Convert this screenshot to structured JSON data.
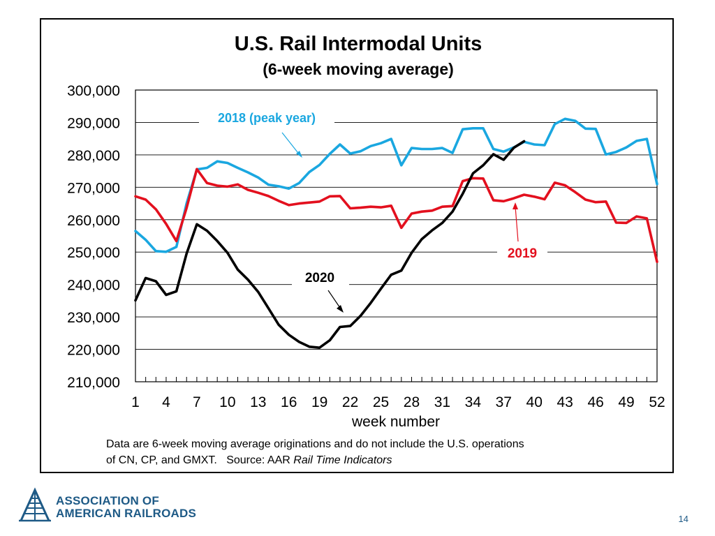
{
  "chart_data": {
    "type": "line",
    "title": "U.S. Rail Intermodal Units",
    "subtitle": "(6-week moving average)",
    "xlabel": "week number",
    "ylabel": "",
    "xlim": [
      1,
      52
    ],
    "ylim": [
      210000,
      300000
    ],
    "x_ticks": [
      "1",
      "4",
      "7",
      "10",
      "13",
      "16",
      "19",
      "22",
      "25",
      "28",
      "31",
      "34",
      "37",
      "40",
      "43",
      "46",
      "49",
      "52"
    ],
    "y_ticks": [
      "300,000",
      "290,000",
      "280,000",
      "270,000",
      "260,000",
      "250,000",
      "240,000",
      "230,000",
      "220,000",
      "210,000"
    ],
    "grid": true,
    "series": [
      {
        "name": "2018 (peak year)",
        "color": "#1aa7e0",
        "x": [
          1,
          2,
          3,
          4,
          5,
          6,
          7,
          8,
          9,
          10,
          11,
          12,
          13,
          14,
          15,
          16,
          17,
          18,
          19,
          20,
          21,
          22,
          23,
          24,
          25,
          26,
          27,
          28,
          29,
          30,
          31,
          32,
          33,
          34,
          35,
          36,
          37,
          38,
          39,
          40,
          41,
          42,
          43,
          44,
          45,
          46,
          47,
          48,
          49,
          50,
          51,
          52
        ],
        "values": [
          256500,
          253800,
          250300,
          250100,
          251600,
          265000,
          275500,
          276000,
          278000,
          277500,
          276000,
          274600,
          273000,
          270800,
          270300,
          269600,
          271300,
          274700,
          276900,
          280300,
          283200,
          280400,
          281100,
          282700,
          283600,
          284900,
          276800,
          282100,
          281800,
          281800,
          282100,
          280600,
          287900,
          288200,
          288200,
          281800,
          281000,
          282300,
          284000,
          283200,
          283000,
          289500,
          291100,
          290500,
          288100,
          288000,
          280100,
          280900,
          282300,
          284300,
          284900,
          271000
        ]
      },
      {
        "name": "2019",
        "color": "#e3101e",
        "x": [
          1,
          2,
          3,
          4,
          5,
          6,
          7,
          8,
          9,
          10,
          11,
          12,
          13,
          14,
          15,
          16,
          17,
          18,
          19,
          20,
          21,
          22,
          23,
          24,
          25,
          26,
          27,
          28,
          29,
          30,
          31,
          32,
          33,
          34,
          35,
          36,
          37,
          38,
          39,
          40,
          41,
          42,
          43,
          44,
          45,
          46,
          47,
          48,
          49,
          50,
          51,
          52
        ],
        "values": [
          267200,
          266200,
          263200,
          258700,
          253400,
          263600,
          275600,
          271300,
          270500,
          270200,
          270900,
          269200,
          268300,
          267300,
          265800,
          264500,
          265000,
          265300,
          265600,
          267200,
          267300,
          263500,
          263700,
          264000,
          263800,
          264300,
          257500,
          261900,
          262500,
          262800,
          264000,
          264200,
          271900,
          272800,
          272700,
          266000,
          265700,
          266600,
          267700,
          267100,
          266300,
          271400,
          270600,
          268500,
          266200,
          265400,
          265600,
          259100,
          259000,
          261000,
          260400,
          247000
        ]
      },
      {
        "name": "2020",
        "color": "#000000",
        "x": [
          1,
          2,
          3,
          4,
          5,
          6,
          7,
          8,
          9,
          10,
          11,
          12,
          13,
          14,
          15,
          16,
          17,
          18,
          19,
          20,
          21,
          22,
          23,
          24,
          25,
          26,
          27,
          28,
          29,
          30,
          31,
          32,
          33,
          34,
          35,
          36,
          37,
          38,
          39
        ],
        "values": [
          235100,
          242000,
          241000,
          236800,
          237900,
          249500,
          258600,
          256600,
          253400,
          249800,
          244600,
          241500,
          237700,
          232700,
          227600,
          224500,
          222300,
          220800,
          220500,
          222800,
          226900,
          227200,
          230300,
          234300,
          238700,
          243000,
          244300,
          249800,
          254000,
          256700,
          259000,
          262500,
          268000,
          274300,
          276800,
          280200,
          278500,
          282200,
          284200
        ]
      }
    ],
    "annotations": [
      {
        "text": "2018 (peak year)",
        "series": "2018 (peak year)"
      },
      {
        "text": "2019",
        "series": "2019"
      },
      {
        "text": "2020",
        "series": "2020"
      }
    ]
  },
  "footnote": {
    "line1": "Data are 6-week moving average originations and do not include the U.S. operations",
    "line2_prefix": "of CN, CP, and GMXT.   Source: AAR ",
    "line2_source": "Rail Time Indicators"
  },
  "logo": {
    "line1": "ASSOCIATION OF",
    "line2": "AMERICAN RAILROADS"
  },
  "page_number": "14"
}
